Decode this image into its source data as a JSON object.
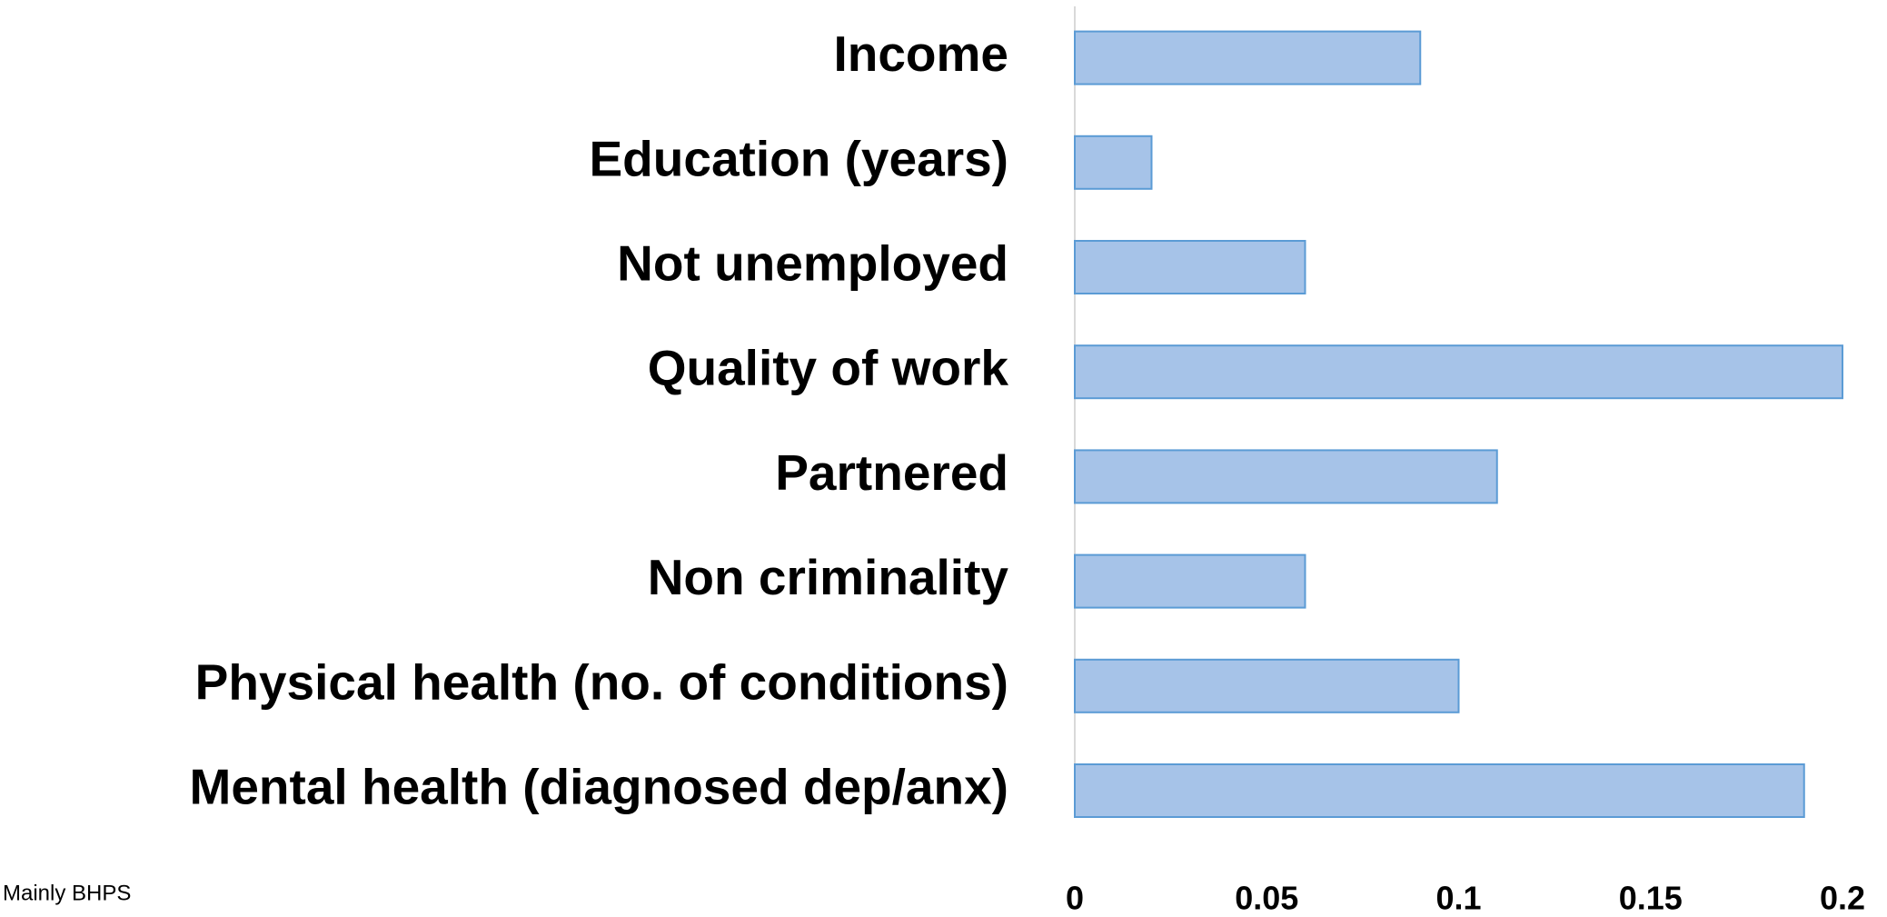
{
  "chart_data": {
    "type": "barh",
    "categories": [
      "Income",
      "Education (years)",
      "Not unemployed",
      "Quality of work",
      "Partnered",
      "Non criminality",
      "Physical health (no. of conditions)",
      "Mental health (diagnosed dep/anx)"
    ],
    "values": [
      0.09,
      0.02,
      0.06,
      0.2,
      0.11,
      0.06,
      0.1,
      0.19
    ],
    "color": "#a6c3e8",
    "xlim": [
      0,
      0.2
    ],
    "xticks": [
      0,
      0.05,
      0.1,
      0.15,
      0.2
    ],
    "grid": false,
    "note": "Mainly BHPS"
  }
}
